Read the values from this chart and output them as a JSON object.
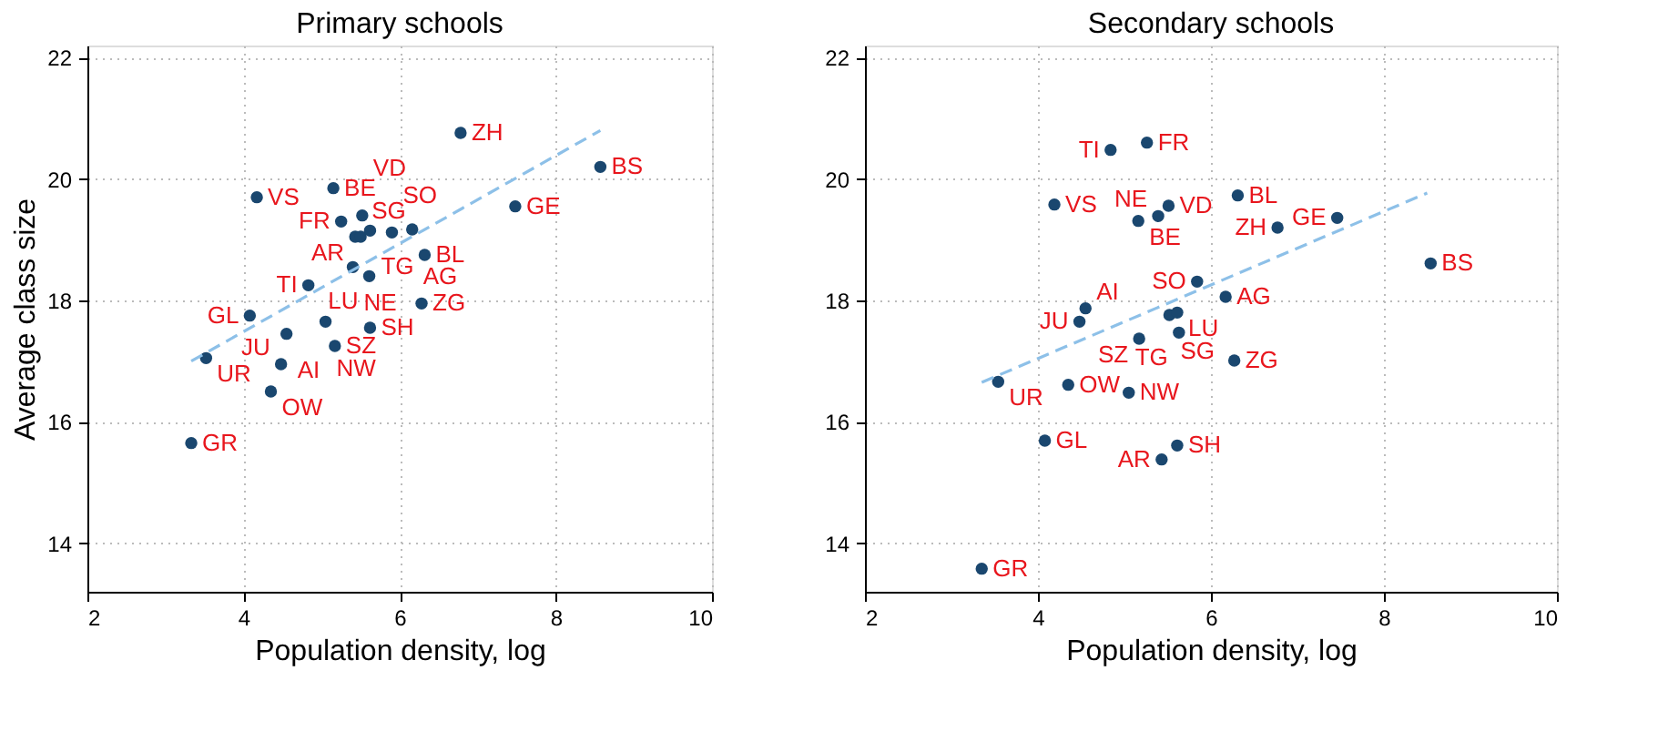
{
  "chart_data": [
    {
      "type": "scatter",
      "title": "Primary schools",
      "xlabel": "Population density, log",
      "ylabel": "Average class size",
      "xlim": [
        2,
        10
      ],
      "ylim": [
        13.2,
        22.2
      ],
      "xticks": [
        2,
        4,
        6,
        8,
        10
      ],
      "yticks": [
        14,
        16,
        18,
        20,
        22
      ],
      "grid": true,
      "legend": false,
      "marker": "circle",
      "series": [
        {
          "color": "#1a476f",
          "x": [
            6.78,
            8.57,
            7.48,
            5.15,
            4.17,
            5.52,
            5.25,
            5.43,
            5.5,
            5.62,
            5.9,
            6.16,
            6.32,
            5.4,
            5.61,
            4.83,
            6.28,
            4.08,
            5.05,
            4.55,
            5.62,
            5.17,
            3.52,
            4.48,
            4.35,
            3.33
          ],
          "values": [
            20.76,
            20.2,
            19.55,
            19.85,
            19.7,
            19.4,
            19.3,
            19.05,
            19.05,
            19.15,
            19.12,
            19.17,
            18.75,
            18.55,
            18.4,
            18.25,
            17.95,
            17.75,
            17.65,
            17.45,
            17.55,
            17.25,
            17.05,
            16.95,
            16.5,
            15.65
          ]
        },
        {
          "type": "line",
          "color": "#8dc0e8",
          "line_style": "dashed",
          "marker": "none",
          "x": [
            3.33,
            8.57
          ],
          "values": [
            17.0,
            20.8
          ]
        }
      ],
      "annotations": [
        {
          "text": "ZH",
          "x": 6.78,
          "y": 20.76
        },
        {
          "text": "BS",
          "x": 8.57,
          "y": 20.2
        },
        {
          "text": "GE",
          "x": 7.48,
          "y": 19.55
        },
        {
          "text": "BE",
          "x": 5.15,
          "y": 19.85
        },
        {
          "text": "VS",
          "x": 4.17,
          "y": 19.7
        },
        {
          "text": "VD",
          "x": 5.52,
          "y": 19.4
        },
        {
          "text": "FR",
          "x": 5.25,
          "y": 19.3
        },
        {
          "text": "AR",
          "x": 5.43,
          "y": 19.05
        },
        {
          "text": "SG",
          "x": 5.5,
          "y": 19.05
        },
        {
          "text": "TG",
          "x": 5.62,
          "y": 19.15
        },
        {
          "text": "SO",
          "x": 5.9,
          "y": 19.12
        },
        {
          "text": "AG",
          "x": 6.16,
          "y": 19.17
        },
        {
          "text": "BL",
          "x": 6.32,
          "y": 18.75
        },
        {
          "text": "NE",
          "x": 5.4,
          "y": 18.55
        },
        {
          "text": "LU",
          "x": 5.61,
          "y": 18.4
        },
        {
          "text": "TI",
          "x": 4.83,
          "y": 18.25
        },
        {
          "text": "ZG",
          "x": 6.28,
          "y": 17.95
        },
        {
          "text": "GL",
          "x": 4.08,
          "y": 17.75
        },
        {
          "text": "NW",
          "x": 5.05,
          "y": 17.65
        },
        {
          "text": "AI",
          "x": 4.55,
          "y": 17.45
        },
        {
          "text": "SH",
          "x": 5.62,
          "y": 17.55
        },
        {
          "text": "SZ",
          "x": 5.17,
          "y": 17.25
        },
        {
          "text": "UR",
          "x": 3.52,
          "y": 17.05
        },
        {
          "text": "JU",
          "x": 4.48,
          "y": 16.95
        },
        {
          "text": "OW",
          "x": 4.35,
          "y": 16.5
        },
        {
          "text": "GR",
          "x": 3.33,
          "y": 15.65
        }
      ]
    },
    {
      "type": "scatter",
      "title": "Secondary schools",
      "xlabel": "Population density, log",
      "xlim": [
        2,
        10
      ],
      "ylim": [
        13.2,
        22.2
      ],
      "xticks": [
        2,
        4,
        6,
        8,
        10
      ],
      "yticks": [
        14,
        16,
        18,
        20,
        22
      ],
      "grid": true,
      "legend": false,
      "marker": "circle",
      "series": [
        {
          "color": "#1a476f",
          "x": [
            4.84,
            5.26,
            4.19,
            5.16,
            5.39,
            5.51,
            6.31,
            6.77,
            7.46,
            8.54,
            5.84,
            6.17,
            4.55,
            4.48,
            5.52,
            5.61,
            5.63,
            5.17,
            6.27,
            3.54,
            4.35,
            5.05,
            4.08,
            5.61,
            5.43,
            3.35
          ],
          "values": [
            20.48,
            20.6,
            19.58,
            19.31,
            19.39,
            19.56,
            19.73,
            19.2,
            19.36,
            18.61,
            18.31,
            18.06,
            17.87,
            17.65,
            17.76,
            17.8,
            17.47,
            17.37,
            17.01,
            16.66,
            16.61,
            16.48,
            15.69,
            15.61,
            15.38,
            13.58
          ]
        },
        {
          "type": "line",
          "color": "#8dc0e8",
          "line_style": "dashed",
          "marker": "none",
          "x": [
            3.35,
            8.5
          ],
          "values": [
            16.65,
            19.77
          ]
        }
      ],
      "annotations": [
        {
          "text": "TI",
          "x": 4.84,
          "y": 20.48
        },
        {
          "text": "FR",
          "x": 5.26,
          "y": 20.6
        },
        {
          "text": "VS",
          "x": 4.19,
          "y": 19.58
        },
        {
          "text": "BE",
          "x": 5.16,
          "y": 19.31
        },
        {
          "text": "NE",
          "x": 5.39,
          "y": 19.39
        },
        {
          "text": "VD",
          "x": 5.51,
          "y": 19.56
        },
        {
          "text": "BL",
          "x": 6.31,
          "y": 19.73
        },
        {
          "text": "ZH",
          "x": 6.77,
          "y": 19.2
        },
        {
          "text": "GE",
          "x": 7.46,
          "y": 19.36
        },
        {
          "text": "BS",
          "x": 8.54,
          "y": 18.61
        },
        {
          "text": "SO",
          "x": 5.84,
          "y": 18.31
        },
        {
          "text": "AG",
          "x": 6.17,
          "y": 18.06
        },
        {
          "text": "AI",
          "x": 4.55,
          "y": 17.87
        },
        {
          "text": "JU",
          "x": 4.48,
          "y": 17.65
        },
        {
          "text": "SG",
          "x": 5.52,
          "y": 17.76
        },
        {
          "text": "LU",
          "x": 5.61,
          "y": 17.8
        },
        {
          "text": "TG",
          "x": 5.63,
          "y": 17.47
        },
        {
          "text": "SZ",
          "x": 5.17,
          "y": 17.37
        },
        {
          "text": "ZG",
          "x": 6.27,
          "y": 17.01
        },
        {
          "text": "UR",
          "x": 3.54,
          "y": 16.66
        },
        {
          "text": "OW",
          "x": 4.35,
          "y": 16.61
        },
        {
          "text": "NW",
          "x": 5.05,
          "y": 16.48
        },
        {
          "text": "GL",
          "x": 4.08,
          "y": 15.69
        },
        {
          "text": "SH",
          "x": 5.61,
          "y": 15.61
        },
        {
          "text": "AR",
          "x": 5.43,
          "y": 15.38
        },
        {
          "text": "GR",
          "x": 3.35,
          "y": 13.58
        }
      ]
    }
  ]
}
